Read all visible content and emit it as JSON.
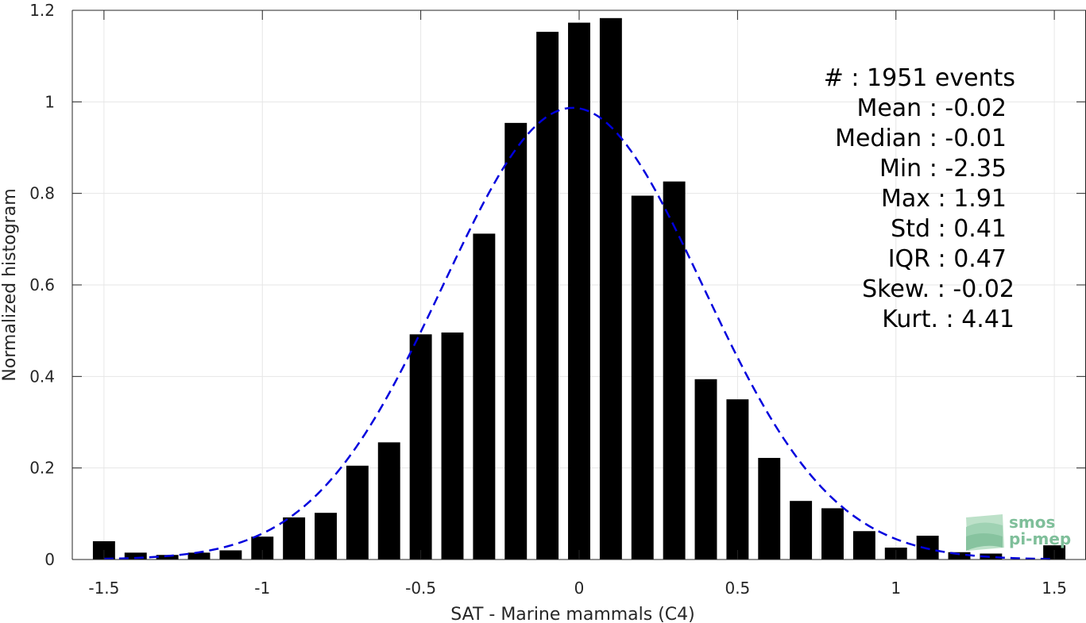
{
  "chart_data": {
    "type": "bar",
    "xlabel": "SAT - Marine mammals (C4)",
    "ylabel": "Normalized histogram",
    "xlim": [
      -1.6,
      1.6
    ],
    "ylim": [
      0,
      1.2
    ],
    "xticks": [
      -1.5,
      -1,
      -0.5,
      0,
      0.5,
      1,
      1.5
    ],
    "xtick_labels": [
      "-1.5",
      "-1",
      "-0.5",
      "0",
      "0.5",
      "1",
      "1.5"
    ],
    "yticks": [
      0,
      0.2,
      0.4,
      0.6,
      0.8,
      1,
      1.2
    ],
    "ytick_labels": [
      "0",
      "0.2",
      "0.4",
      "0.6",
      "0.8",
      "1",
      "1.2"
    ],
    "grid": true,
    "bar_width": 0.07,
    "bar_color": "#000000",
    "bins": [
      -1.5,
      -1.4,
      -1.3,
      -1.2,
      -1.1,
      -1.0,
      -0.9,
      -0.8,
      -0.7,
      -0.6,
      -0.5,
      -0.4,
      -0.3,
      -0.2,
      -0.1,
      0.0,
      0.1,
      0.2,
      0.3,
      0.4,
      0.5,
      0.6,
      0.7,
      0.8,
      0.9,
      1.0,
      1.1,
      1.2,
      1.3,
      1.5
    ],
    "values": [
      0.04,
      0.015,
      0.01,
      0.015,
      0.02,
      0.05,
      0.092,
      0.102,
      0.205,
      0.256,
      0.492,
      0.496,
      0.712,
      0.954,
      1.153,
      1.173,
      1.183,
      0.795,
      0.826,
      0.394,
      0.35,
      0.222,
      0.128,
      0.112,
      0.062,
      0.026,
      0.052,
      0.016,
      0.013,
      0.031
    ],
    "fit": {
      "type": "normal",
      "mean": -0.02,
      "std": 0.41,
      "scale": 0.987,
      "x_range": [
        -1.5,
        1.5
      ],
      "color": "#0000dd",
      "style": "dashed"
    },
    "annotations": [
      "#  : 1951 events",
      "Mean : -0.02",
      "Median : -0.01",
      "Min : -2.35",
      "Max : 1.91",
      "Std : 0.41",
      "IQR : 0.47",
      "Skew. : -0.02",
      "Kurt. : 4.41"
    ]
  },
  "logo": {
    "line1": "smos",
    "line2": "pi-mep"
  }
}
